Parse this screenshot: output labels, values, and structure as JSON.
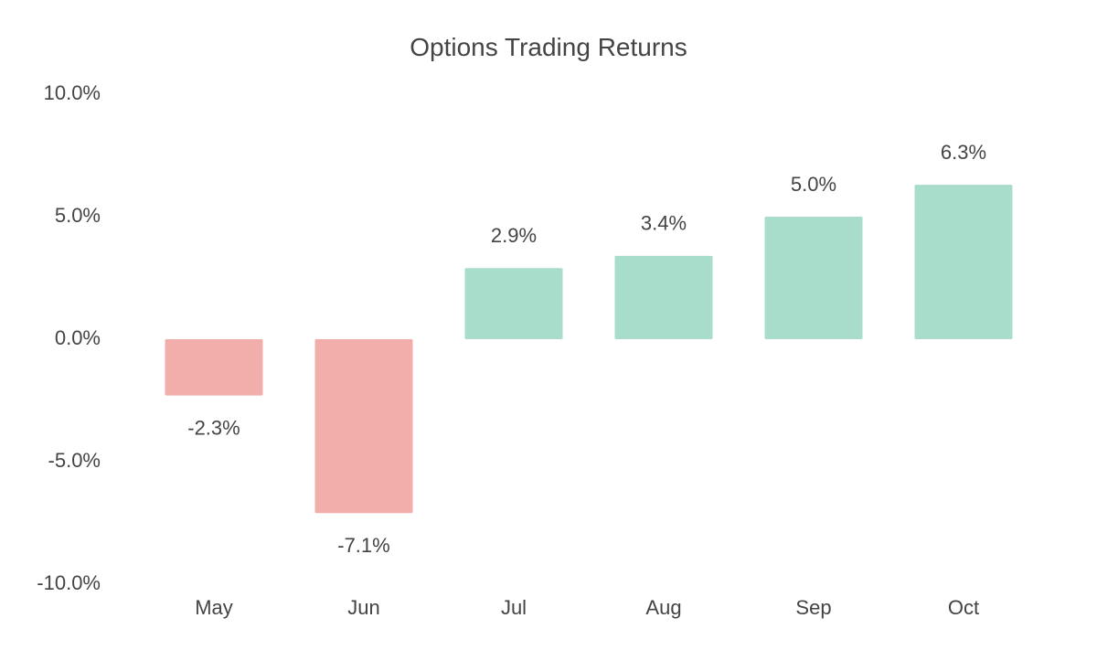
{
  "chart_data": {
    "type": "bar",
    "title": "Options Trading Returns",
    "xlabel": "",
    "ylabel": "",
    "categories": [
      "May",
      "Jun",
      "Jul",
      "Aug",
      "Sep",
      "Oct"
    ],
    "values": [
      -2.3,
      -7.1,
      2.9,
      3.4,
      5.0,
      6.3
    ],
    "value_labels": [
      "-2.3%",
      "-7.1%",
      "2.9%",
      "3.4%",
      "5.0%",
      "6.3%"
    ],
    "ylim": [
      -10,
      10
    ],
    "yticks": [
      10,
      5,
      0,
      -5,
      -10
    ],
    "ytick_labels": [
      "10.0%",
      "5.0%",
      "0.0%",
      "-5.0%",
      "-10.0%"
    ],
    "grid": false,
    "legend": "none",
    "colors": {
      "positive": "#a8dccb",
      "negative": "#f2aeab"
    }
  }
}
